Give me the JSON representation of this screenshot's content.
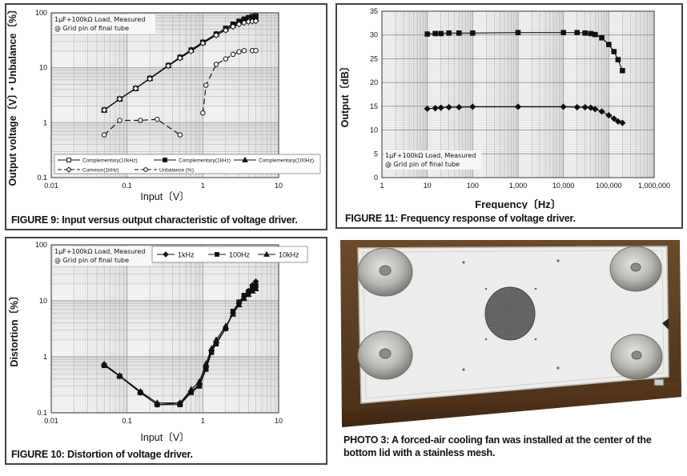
{
  "fig9": {
    "caption": "FIGURE 9: Input versus output characteristic of voltage driver.",
    "chart_data": {
      "type": "line",
      "xscale": "log",
      "yscale": "log",
      "xlim": [
        0.01,
        10
      ],
      "ylim": [
        0.1,
        100
      ],
      "xlabel": "Input〔V〕",
      "ylabel": "Output voltage〔V〕・Unbalance〔%〕",
      "xticks": [
        "0.01",
        "0.1",
        "1",
        "10"
      ],
      "yticks": [
        "0.1",
        "1",
        "10",
        "100"
      ],
      "annotation": [
        "1μF+100kΩ Load, Measured",
        "@ Grid pin of final tube"
      ],
      "legend_position": "bottom",
      "series": [
        {
          "name": "Complementary(10kHz)",
          "marker": "square-open",
          "dash": false,
          "x": [
            0.05,
            0.08,
            0.13,
            0.2,
            0.35,
            0.5,
            0.7,
            1.0,
            1.5,
            2.0,
            2.5,
            3.0,
            3.5,
            4.0,
            4.5,
            5.0
          ],
          "y": [
            1.7,
            2.7,
            4.2,
            6.4,
            11.0,
            15.5,
            21,
            29,
            41,
            52,
            62,
            70,
            77,
            82,
            86,
            88
          ]
        },
        {
          "name": "Complementary(1kHz)",
          "marker": "square-filled",
          "dash": false,
          "x": [
            0.05,
            0.08,
            0.13,
            0.2,
            0.35,
            0.5,
            0.7,
            1.0,
            1.5,
            2.0,
            2.5,
            3.0,
            3.5,
            4.0,
            4.5,
            5.0
          ],
          "y": [
            1.7,
            2.7,
            4.2,
            6.4,
            11.0,
            15.5,
            21,
            29,
            41,
            52,
            62,
            70,
            76,
            80,
            83,
            85
          ]
        },
        {
          "name": "Complementary(100Hz)",
          "marker": "triangle-filled",
          "dash": false,
          "x": [
            0.05,
            0.08,
            0.13,
            0.2,
            0.35,
            0.5,
            0.7,
            1.0,
            1.5,
            2.0,
            2.5,
            3.0,
            3.5,
            4.0,
            4.5,
            5.0
          ],
          "y": [
            1.7,
            2.7,
            4.2,
            6.4,
            11.0,
            15.5,
            21,
            29,
            41,
            51,
            60,
            67,
            72,
            76,
            78,
            79
          ]
        },
        {
          "name": "Common(1kHz)",
          "marker": "diamond-open",
          "dash": false,
          "x": [
            0.05,
            0.08,
            0.13,
            0.2,
            0.35,
            0.5,
            0.7,
            1.0,
            1.5,
            2.0,
            2.5,
            3.0,
            3.5,
            4.0,
            4.5,
            5.0
          ],
          "y": [
            1.7,
            2.7,
            4.2,
            6.3,
            10.8,
            15,
            20,
            28,
            39,
            48,
            56,
            62,
            66,
            69,
            70,
            71
          ]
        },
        {
          "name": "Unbalance (%)",
          "marker": "circle-open",
          "dash": true,
          "x": [
            0.05,
            0.08,
            0.15,
            0.25,
            0.5
          ],
          "y": [
            0.6,
            1.1,
            1.1,
            1.15,
            0.6
          ]
        },
        {
          "name": "Unbalance (%) ",
          "marker": "circle-open",
          "dash": true,
          "x": [
            1.0,
            1.1,
            1.5,
            2.0,
            2.5,
            3.0,
            3.5,
            4.5,
            5.0
          ],
          "y": [
            1.5,
            4.8,
            11.5,
            14.5,
            17.5,
            19.5,
            20.5,
            20.5,
            20.5
          ]
        }
      ]
    }
  },
  "fig11": {
    "caption": "FIGURE 11: Frequency response of voltage driver.",
    "chart_data": {
      "type": "line",
      "xscale": "log",
      "yscale": "linear",
      "xlim": [
        1,
        1000000
      ],
      "ylim": [
        0,
        35
      ],
      "xlabel": "Frequency〔Hz〕",
      "ylabel": "Output〔dB〕",
      "xticks": [
        "1",
        "10",
        "100",
        "1,000",
        "10,000",
        "100,000",
        "1,000,000"
      ],
      "yticks": [
        "0",
        "5",
        "10",
        "15",
        "20",
        "25",
        "30",
        "35"
      ],
      "annotation": [
        "1μF+100kΩ Load, Measured",
        "@ Grid pin of final tube"
      ],
      "series": [
        {
          "marker": "square-filled",
          "x": [
            10,
            15,
            20,
            30,
            50,
            100,
            1000,
            10000,
            20000,
            30000,
            40000,
            50000,
            70000,
            100000,
            130000,
            160000,
            200000
          ],
          "y": [
            30.2,
            30.3,
            30.3,
            30.4,
            30.4,
            30.4,
            30.5,
            30.5,
            30.5,
            30.4,
            30.3,
            30.1,
            29.4,
            28.0,
            26.5,
            24.8,
            22.5
          ]
        },
        {
          "marker": "diamond-filled",
          "x": [
            10,
            15,
            20,
            30,
            50,
            100,
            1000,
            10000,
            20000,
            30000,
            40000,
            50000,
            70000,
            100000,
            130000,
            160000,
            200000
          ],
          "y": [
            14.5,
            14.6,
            14.7,
            14.8,
            14.8,
            14.9,
            14.9,
            14.9,
            14.8,
            14.8,
            14.7,
            14.4,
            13.9,
            13.1,
            12.4,
            11.8,
            11.5
          ]
        }
      ]
    }
  },
  "fig10": {
    "caption": "FIGURE 10: Distortion of voltage driver.",
    "chart_data": {
      "type": "line",
      "xscale": "log",
      "yscale": "log",
      "xlim": [
        0.01,
        10
      ],
      "ylim": [
        0.1,
        100
      ],
      "xlabel": "Input〔V〕",
      "ylabel": "Distortion〔%〕",
      "xticks": [
        "0.01",
        "0.1",
        "1",
        "10"
      ],
      "yticks": [
        "0.1",
        "1",
        "10",
        "100"
      ],
      "annotation": [
        "1μF+100kΩ Load, Measured",
        "@ Grid pin of final tube"
      ],
      "legend_position": "top",
      "series": [
        {
          "name": "1kHz",
          "marker": "diamond-filled",
          "x": [
            0.05,
            0.08,
            0.15,
            0.25,
            0.5,
            0.7,
            0.9,
            1.1,
            1.3,
            1.5,
            2.0,
            2.5,
            3.0,
            3.5,
            4.0,
            4.5,
            5.0
          ],
          "y": [
            0.72,
            0.45,
            0.23,
            0.14,
            0.15,
            0.24,
            0.32,
            0.65,
            1.3,
            1.8,
            3.2,
            6.0,
            9.0,
            12.0,
            15.0,
            19.0,
            22.0
          ]
        },
        {
          "name": "100Hz",
          "marker": "square-filled",
          "x": [
            0.05,
            0.08,
            0.15,
            0.25,
            0.5,
            0.7,
            0.9,
            1.1,
            1.3,
            1.5,
            2.0,
            2.5,
            3.0,
            3.5,
            4.0,
            4.5,
            5.0
          ],
          "y": [
            0.7,
            0.45,
            0.23,
            0.14,
            0.14,
            0.23,
            0.3,
            0.6,
            1.2,
            1.7,
            3.2,
            6.5,
            9.5,
            12.5,
            14.5,
            17.0,
            18.5
          ]
        },
        {
          "name": "10kHz",
          "marker": "triangle-filled",
          "x": [
            0.05,
            0.08,
            0.15,
            0.25,
            0.5,
            0.7,
            0.9,
            1.1,
            1.3,
            1.5,
            2.0,
            2.5,
            3.0,
            3.5,
            4.0,
            4.5,
            5.0
          ],
          "y": [
            0.74,
            0.46,
            0.24,
            0.15,
            0.15,
            0.26,
            0.36,
            0.75,
            1.4,
            2.0,
            3.5,
            5.8,
            8.5,
            11.0,
            13.0,
            15.0,
            16.5
          ]
        }
      ]
    }
  },
  "photo": {
    "caption": "PHOTO 3: A forced-air cooling fan was installed at the center of the bottom lid with a stainless mesh."
  }
}
